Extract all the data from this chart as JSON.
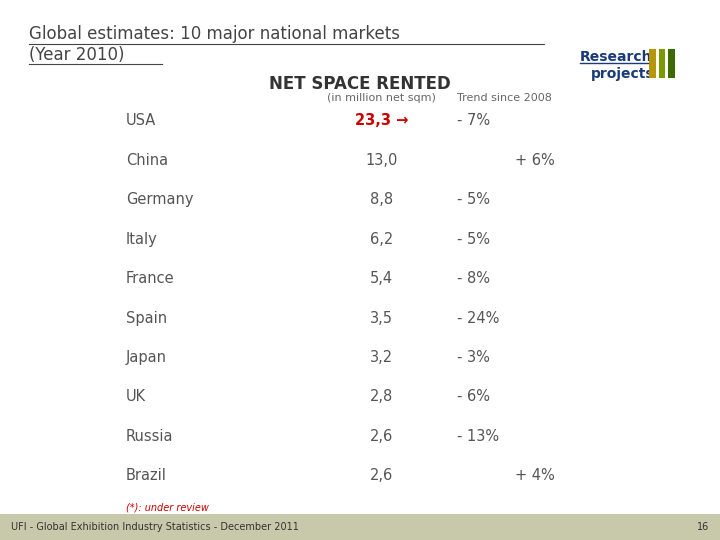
{
  "title_line1": "Global estimates: 10 major national markets",
  "title_line2": "(Year 2010)",
  "section_title": "NET SPACE RENTED",
  "col1_header": "(in million net sqm)",
  "col2_header": "Trend since 2008",
  "countries": [
    "USA",
    "China",
    "Germany",
    "Italy",
    "France",
    "Spain",
    "Japan",
    "UK",
    "Russia",
    "Brazil"
  ],
  "values": [
    "23,3 →",
    "13,0",
    "8,8",
    "6,2",
    "5,4",
    "3,5",
    "3,2",
    "2,8",
    "2,6",
    "2,6"
  ],
  "value_is_red": [
    true,
    false,
    false,
    false,
    false,
    false,
    false,
    false,
    false,
    false
  ],
  "trends": [
    "- 7%",
    "+ 6%",
    "- 5%",
    "- 5%",
    "- 8%",
    "- 24%",
    "- 3%",
    "- 6%",
    "- 13%",
    "+ 4%"
  ],
  "trend_align_right": [
    false,
    true,
    false,
    false,
    false,
    false,
    false,
    false,
    false,
    true
  ],
  "footnote": "(*): under review",
  "footer": "UFI - Global Exhibition Industry Statistics - December 2011",
  "page_num": "16",
  "bg_color": "#ffffff",
  "title_color": "#444444",
  "section_title_color": "#333333",
  "country_color": "#555555",
  "value_default_color": "#555555",
  "value_red_color": "#cc0000",
  "trend_color": "#555555",
  "header_color": "#666666",
  "footnote_color": "#cc0000",
  "footer_color": "#333333",
  "footer_bg": "#c8c8aa",
  "title_underline_color": "#444444",
  "stripe_colors": [
    "#b8960a",
    "#7a9a00",
    "#3a6a00"
  ],
  "research_color": "#1a3a7a",
  "footer_bar_height": 0.048
}
